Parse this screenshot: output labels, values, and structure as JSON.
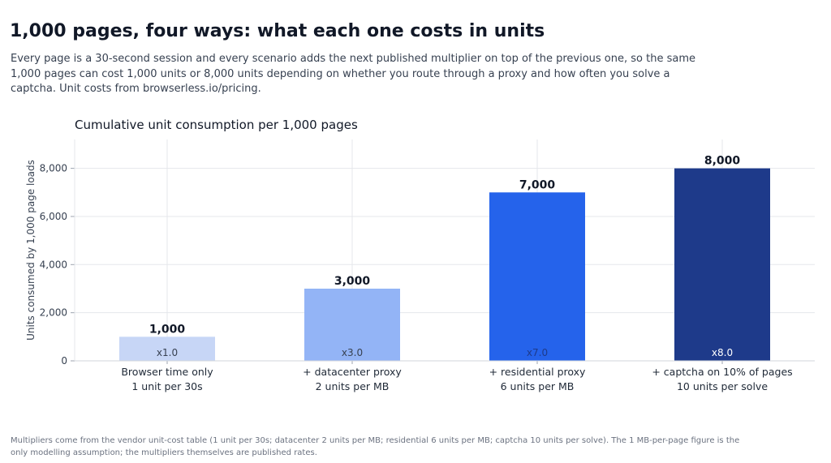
{
  "header": {
    "title": "1,000 pages, four ways: what each one costs in units",
    "subtitle": "Every page is a 30-second session and every scenario adds the next published multiplier on top of the previous one, so the same 1,000 pages can cost 1,000 units or 8,000 units depending on whether you route through a proxy and how often you solve a captcha. Unit costs from browserless.io/pricing."
  },
  "footnote": "Multipliers come from the vendor unit-cost table (1 unit per 30s; datacenter 2 units per MB; residential 6 units per MB; captcha 10 units per solve). The 1 MB-per-page figure is the only modelling assumption; the multipliers themselves are published rates.",
  "chart_data": {
    "type": "bar",
    "title": "Cumulative unit consumption per 1,000 pages",
    "xlabel": "",
    "ylabel": "Units consumed by 1,000 page loads",
    "ylim": [
      0,
      9200
    ],
    "yticks": [
      0,
      2000,
      4000,
      6000,
      8000
    ],
    "ytick_labels": [
      "0",
      "2,000",
      "4,000",
      "6,000",
      "8,000"
    ],
    "grid": true,
    "categories": [
      [
        "Browser time only",
        "1 unit per 30s"
      ],
      [
        "+ datacenter proxy",
        "2 units per MB"
      ],
      [
        "+ residential proxy",
        "6 units per MB"
      ],
      [
        "+ captcha on 10% of pages",
        "10 units per solve"
      ]
    ],
    "values": [
      1000,
      3000,
      7000,
      8000
    ],
    "value_labels": [
      "1,000",
      "3,000",
      "7,000",
      "8,000"
    ],
    "multiplier_labels": [
      "x1.0",
      "x3.0",
      "x7.0",
      "x8.0"
    ],
    "colors": [
      "#c7d6f6",
      "#93b4f6",
      "#2563eb",
      "#1e3a8a"
    ],
    "multiplier_colors": [
      "#374151",
      "#374151",
      "#1e3a8a",
      "#ffffff"
    ]
  }
}
